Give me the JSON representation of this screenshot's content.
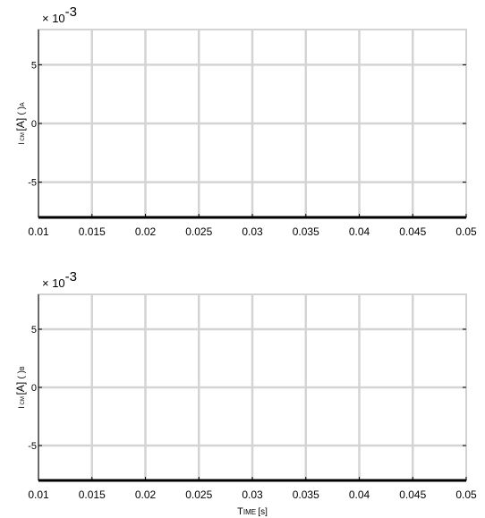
{
  "chart_data": [
    {
      "type": "line",
      "title": "",
      "xlabel": "",
      "ylabel": "I CM [A] ( )A",
      "ylabel_parts": {
        "main": "I",
        "sub": "CM",
        "units": "[A]",
        "paren": "( )",
        "suffix": "A"
      },
      "exponent_label": {
        "prefix": "× 10",
        "power": "-3"
      },
      "xlim": [
        0.01,
        0.05
      ],
      "ylim": [
        -0.008,
        0.008
      ],
      "x_ticks": [
        0.01,
        0.015,
        0.02,
        0.025,
        0.03,
        0.035,
        0.04,
        0.045,
        0.05
      ],
      "x_tick_labels": [
        "0.01",
        "0.015",
        "0.02",
        "0.025",
        "0.03",
        "0.035",
        "0.04",
        "0.045",
        "0.05"
      ],
      "y_ticks": [
        -0.005,
        0,
        0.005
      ],
      "y_tick_labels": [
        "-5",
        "0",
        "5"
      ],
      "grid": true,
      "series": [],
      "colors": {
        "grid": "#d4d4d4",
        "axis": "#000000",
        "background": "#ffffff"
      }
    },
    {
      "type": "line",
      "title": "",
      "xlabel": "Time [s]",
      "xlabel_parts": {
        "main": "T",
        "small": "IME",
        "units": "[s]"
      },
      "ylabel": "I CM [A] ( )B",
      "ylabel_parts": {
        "main": "I",
        "sub": "CM",
        "units": "[A]",
        "paren": "( )",
        "suffix": "B"
      },
      "exponent_label": {
        "prefix": "× 10",
        "power": "-3"
      },
      "xlim": [
        0.01,
        0.05
      ],
      "ylim": [
        -0.008,
        0.008
      ],
      "x_ticks": [
        0.01,
        0.015,
        0.02,
        0.025,
        0.03,
        0.035,
        0.04,
        0.045,
        0.05
      ],
      "x_tick_labels": [
        "0.01",
        "0.015",
        "0.02",
        "0.025",
        "0.03",
        "0.035",
        "0.04",
        "0.045",
        "0.05"
      ],
      "y_ticks": [
        -0.005,
        0,
        0.005
      ],
      "y_tick_labels": [
        "-5",
        "0",
        "5"
      ],
      "grid": true,
      "series": [],
      "colors": {
        "grid": "#d4d4d4",
        "axis": "#000000",
        "background": "#ffffff"
      }
    }
  ]
}
